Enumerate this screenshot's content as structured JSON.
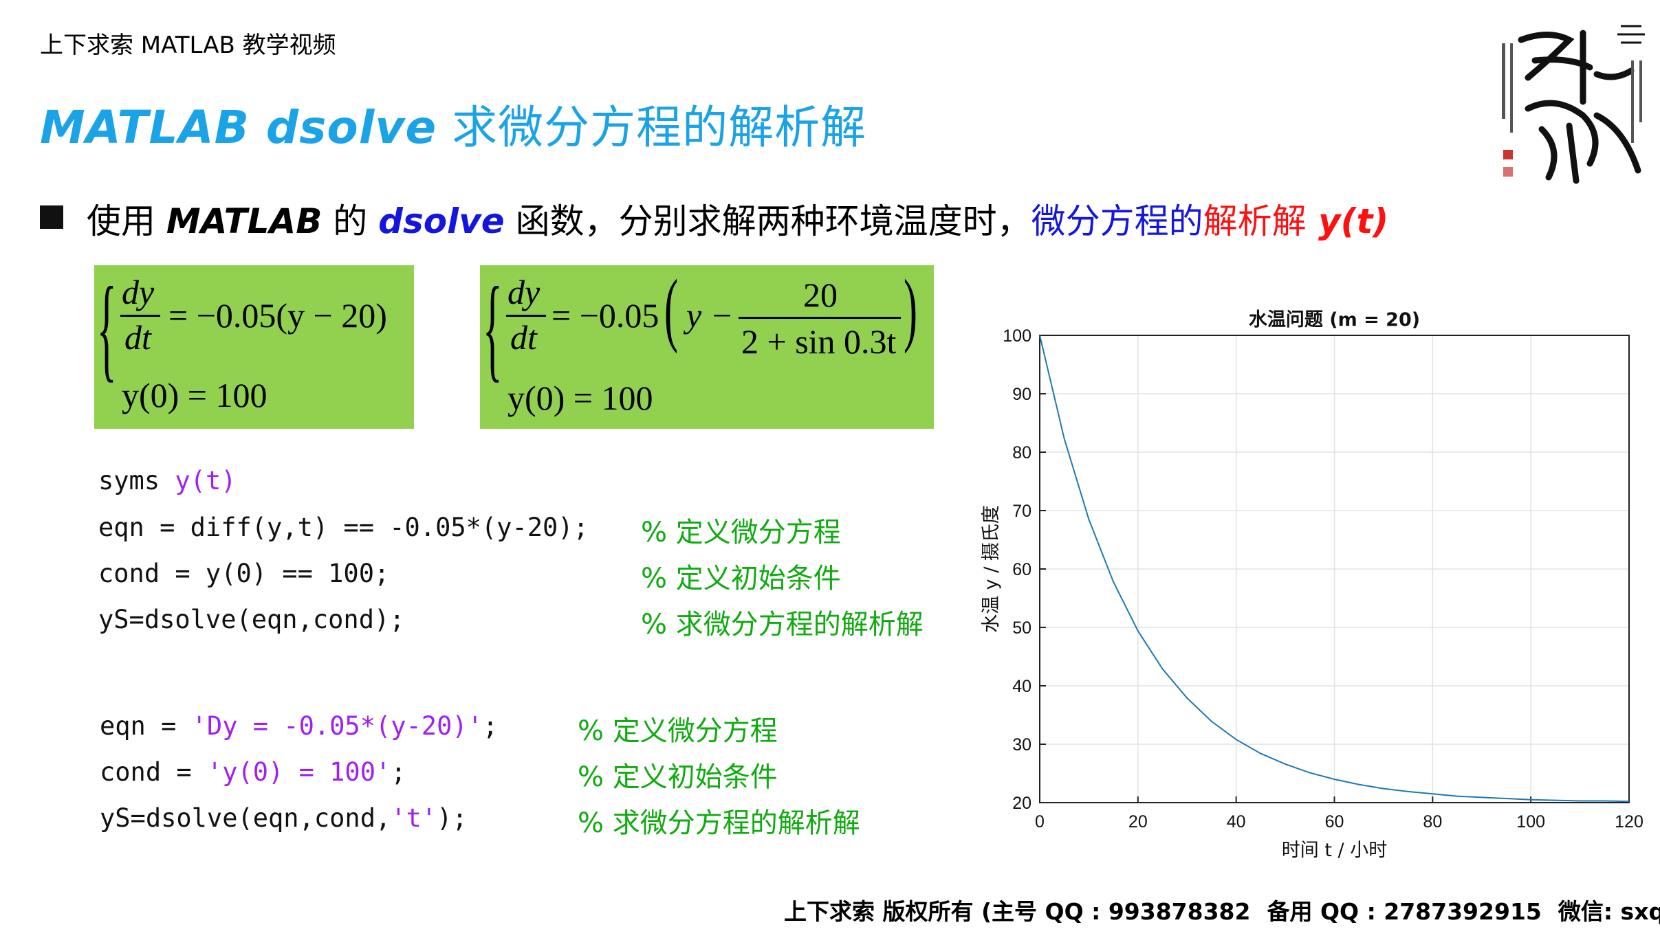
{
  "header": {
    "course_label": "上下求索 MATLAB 教学视频"
  },
  "title": {
    "en": "MATLAB dsolve",
    "zh": " 求微分方程的解析解"
  },
  "bullet": {
    "p1": "使用 ",
    "p2": "MATLAB",
    "p3": " 的 ",
    "p4": "dsolve",
    "p5": " 函数，分别求解两种环境温度时，",
    "p6": "微分方程的",
    "p7": "解析解",
    "p8": " y(t)"
  },
  "equation1": {
    "dy": "dy",
    "dt": "dt",
    "rhs": "= −0.05(y − 20)",
    "init": "y(0) = 100"
  },
  "equation2": {
    "dy": "dy",
    "dt": "dt",
    "rhs_left": "= −0.05",
    "y_minus": "y −",
    "num": "20",
    "den": "2 + sin 0.3t",
    "init": "y(0) = 100"
  },
  "code_block1": [
    {
      "code": "syms ",
      "param": "y(t)",
      "comment": ""
    },
    {
      "code": "eqn = diff(y,t) == -0.05*(y-20);",
      "param": "",
      "comment": "% 定义微分方程"
    },
    {
      "code": "cond = y(0) == 100;",
      "param": "",
      "comment": "% 定义初始条件"
    },
    {
      "code": "yS=dsolve(eqn,cond);",
      "param": "",
      "comment": "% 求微分方程的解析解"
    }
  ],
  "code_block2": [
    {
      "pre": "eqn = ",
      "param": "'Dy = -0.05*(y-20)'",
      "post": ";",
      "comment": "% 定义微分方程"
    },
    {
      "pre": "cond = ",
      "param": "'y(0) = 100'",
      "post": ";",
      "comment": "% 定义初始条件"
    },
    {
      "pre": "yS=dsolve(eqn,cond,",
      "param": "'t'",
      "post": ");",
      "comment": "% 求微分方程的解析解"
    }
  ],
  "chart_data": {
    "type": "line",
    "title": "水温问题 (m = 20)",
    "xlabel": "时间 t / 小时",
    "ylabel": "水温 y / 摄氏度",
    "xlim": [
      0,
      120
    ],
    "ylim": [
      20,
      100
    ],
    "xticks": [
      0,
      20,
      40,
      60,
      80,
      100,
      120
    ],
    "yticks": [
      20,
      30,
      40,
      50,
      60,
      70,
      80,
      90,
      100
    ],
    "grid": true,
    "series": [
      {
        "color": "#1f77b4",
        "x": [
          0,
          5,
          10,
          15,
          20,
          25,
          30,
          35,
          40,
          45,
          50,
          55,
          60,
          65,
          70,
          75,
          80,
          85,
          90,
          95,
          100,
          105,
          110,
          115,
          120
        ],
        "y": [
          100,
          82.3,
          68.5,
          57.8,
          49.4,
          42.9,
          37.9,
          33.9,
          30.8,
          28.4,
          26.6,
          25.1,
          24.0,
          23.1,
          22.4,
          21.9,
          21.5,
          21.1,
          20.9,
          20.7,
          20.5,
          20.4,
          20.3,
          20.3,
          20.2
        ]
      }
    ]
  },
  "footer": {
    "owner": "上下求索  版权所有 (主号 QQ : 993878382",
    "backup": "备用 QQ : 2787392915",
    "wechat": "微信: sxqiuso)"
  },
  "colors": {
    "title": "#1aa3e6",
    "eq_box": "#92d050",
    "param": "#a020f0",
    "comment": "#11aa11"
  }
}
